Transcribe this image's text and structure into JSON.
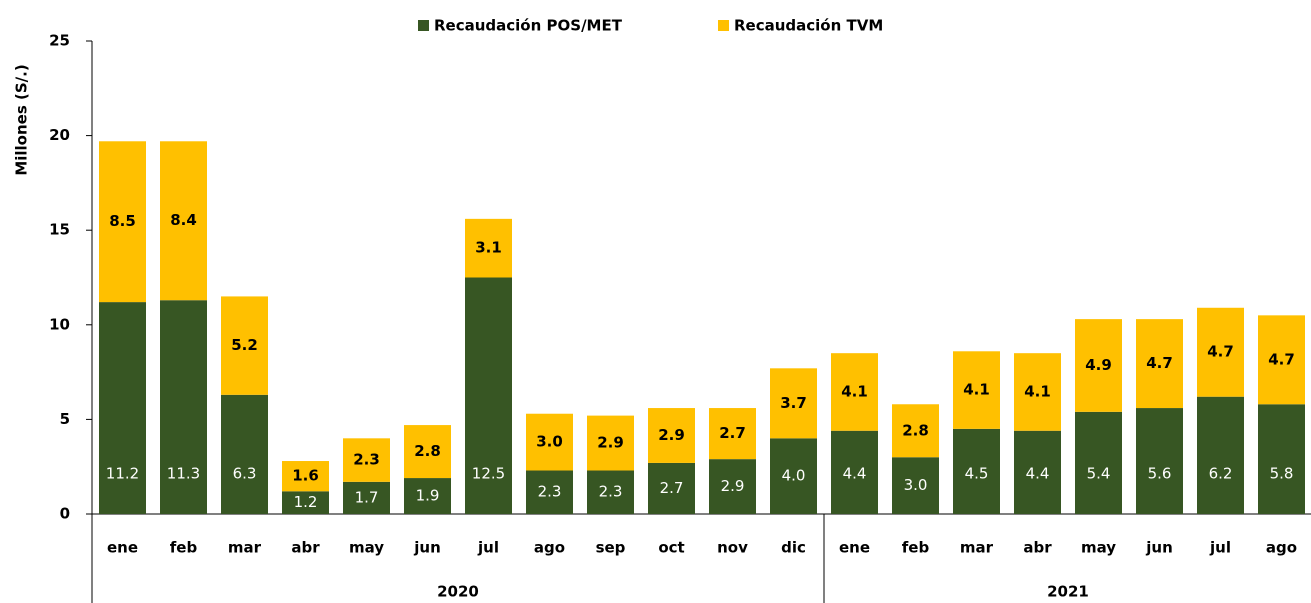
{
  "chart_data": {
    "type": "stacked_bar",
    "y_label": "Millones (S/.)",
    "category_groups": [
      {
        "name": "2020",
        "categories": [
          "ene",
          "feb",
          "mar",
          "abr",
          "may",
          "jun",
          "jul",
          "ago",
          "sep",
          "oct",
          "nov",
          "dic"
        ]
      },
      {
        "name": "2021",
        "categories": [
          "ene",
          "feb",
          "mar",
          "abr",
          "may",
          "jun",
          "jul",
          "ago"
        ]
      }
    ],
    "series": [
      {
        "name": "Recaudación POS/MET",
        "color": "#375623",
        "values": [
          11.2,
          11.3,
          6.3,
          1.2,
          1.7,
          1.9,
          12.5,
          2.3,
          2.3,
          2.7,
          2.9,
          4.0,
          4.4,
          3.0,
          4.5,
          4.4,
          5.4,
          5.6,
          6.2,
          5.8
        ],
        "value_labels": [
          "11.2",
          "11.3",
          "6.3",
          "1.2",
          "1.7",
          "1.9",
          "12.5",
          "2.3",
          "2.3",
          "2.7",
          "2.9",
          "4.0",
          "4.4",
          "3.0",
          "4.5",
          "4.4",
          "5.4",
          "5.6",
          "6.2",
          "5.8"
        ]
      },
      {
        "name": "Recaudación TVM",
        "color": "#FFC000",
        "values": [
          8.5,
          8.4,
          5.2,
          1.6,
          2.3,
          2.8,
          3.1,
          3.0,
          2.9,
          2.9,
          2.7,
          3.7,
          4.1,
          2.8,
          4.1,
          4.1,
          4.9,
          4.7,
          4.7,
          4.7
        ],
        "value_labels": [
          "8.5",
          "8.4",
          "5.2",
          "1.6",
          "2.3",
          "2.8",
          "3.1",
          "3.0",
          "2.9",
          "2.9",
          "2.7",
          "3.7",
          "4.1",
          "2.8",
          "4.1",
          "4.1",
          "4.9",
          "4.7",
          "4.7",
          "4.7"
        ]
      }
    ],
    "ylim": [
      0,
      25
    ],
    "yticks": [
      0,
      5,
      10,
      15,
      20,
      25
    ],
    "grid": false
  }
}
